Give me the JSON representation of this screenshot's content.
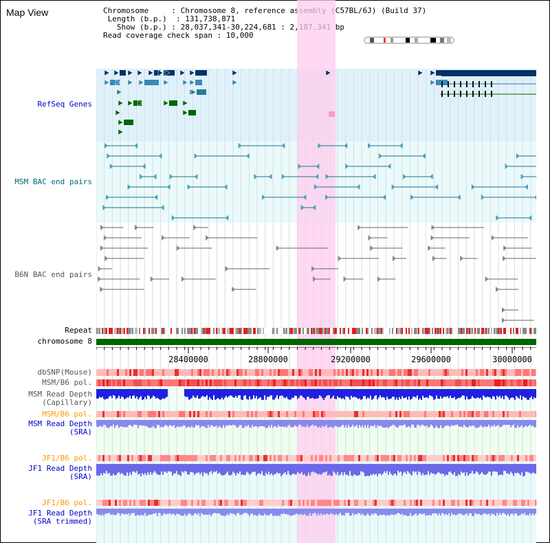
{
  "title": "Map View",
  "info": {
    "chromosome_label": "Chromosome",
    "chromosome_value": "Chromosome 8, reference assembly (C57BL/6J) (Build 37)",
    "length_label": "Length (b.p.)",
    "length_value": "131,738,871",
    "show_label": "Show (b.p.)",
    "show_value": "28,037,341-30,224,681 : 2,187,341 bp",
    "coverage_label": "Read coverage check span",
    "coverage_value": "10,000"
  },
  "tracks": {
    "refseq": "RefSeq Genes",
    "msm_bac": "MSM BAC end pairs",
    "b6n_bac": "B6N BAC end pairs",
    "repeat": "Repeat",
    "chromosome": "chromosome 8",
    "dbsnp": "dbSNP(Mouse)",
    "msm_b6_pol": "MSM/B6 pol.",
    "msm_depth_cap_1": "MSM Read Depth",
    "msm_depth_cap_2": "(Capillary)",
    "msm_b6_pol_sra": "MSM/B6 pol.",
    "msm_depth_sra_1": "MSM Read Depth",
    "msm_depth_sra_2": "(SRA)",
    "jf1_b6_pol": "JF1/B6 pol.",
    "jf1_depth_sra_1": "JF1 Read Depth",
    "jf1_depth_sra_2": "(SRA)",
    "jf1_b6_pol_trim": "JF1/B6 pol.",
    "jf1_depth_trim_1": "JF1 Read Depth",
    "jf1_depth_trim_2": "(SRA trimmed)"
  },
  "axis": {
    "ticks": [
      "28400000",
      "28800000",
      "29200000",
      "29600000",
      "30000000"
    ]
  },
  "colors": {
    "refseq_label": "#0000cc",
    "msm_label": "#006680",
    "b6n_label": "#555555",
    "orange_label": "#ff9900",
    "blue_label": "#0000cc",
    "highlight": "#ffccee",
    "chromosome_bar": "#006600"
  }
}
